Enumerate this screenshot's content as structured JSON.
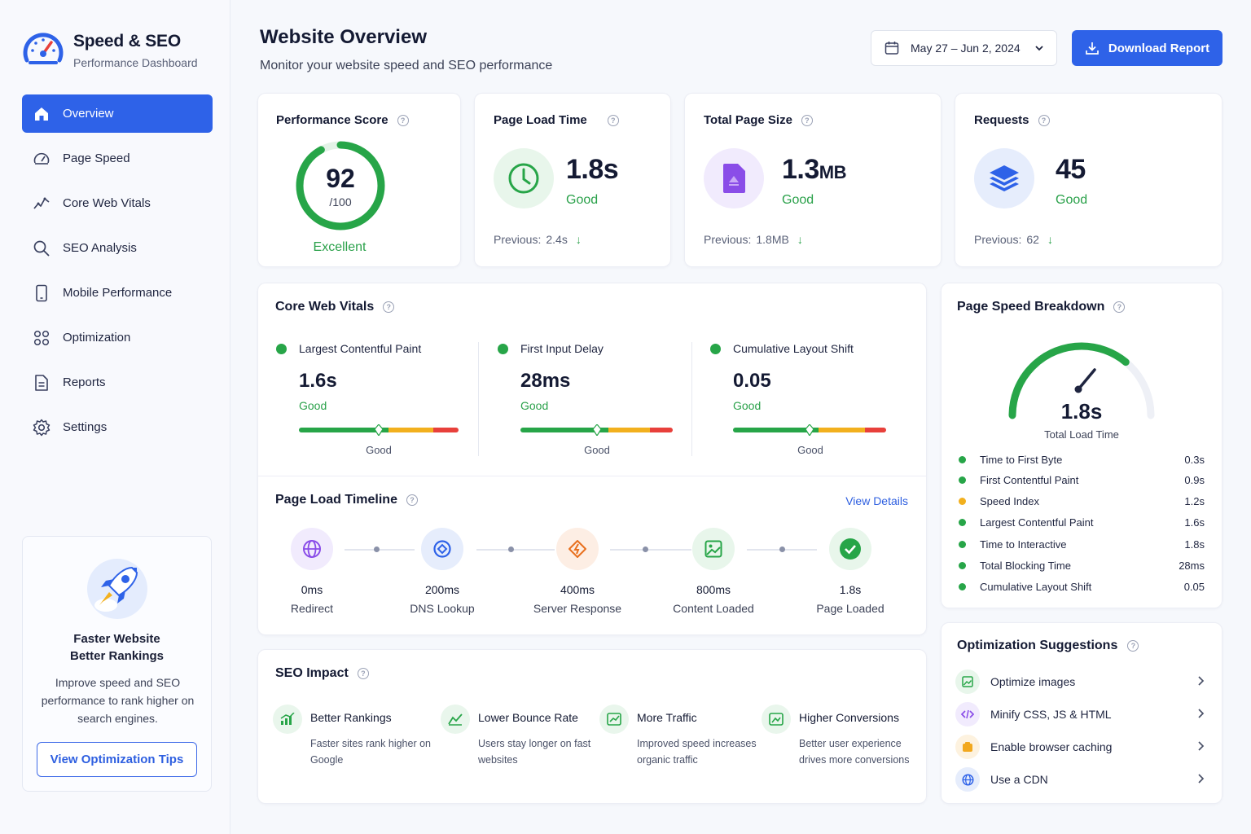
{
  "brand": {
    "title": "Speed & SEO",
    "subtitle": "Performance Dashboard"
  },
  "nav": [
    {
      "label": "Overview",
      "icon": "home-icon",
      "active": true
    },
    {
      "label": "Page Speed",
      "icon": "speedometer-icon"
    },
    {
      "label": "Core Web Vitals",
      "icon": "pulse-icon"
    },
    {
      "label": "SEO Analysis",
      "icon": "search-icon"
    },
    {
      "label": "Mobile Performance",
      "icon": "mobile-icon"
    },
    {
      "label": "Optimization",
      "icon": "optimization-icon"
    },
    {
      "label": "Reports",
      "icon": "document-icon"
    },
    {
      "label": "Settings",
      "icon": "gear-icon"
    }
  ],
  "promo": {
    "title_line1": "Faster Website",
    "title_line2": "Better Rankings",
    "text": "Improve speed and SEO performance to rank higher on search engines.",
    "button": "View Optimization Tips"
  },
  "header": {
    "title": "Website Overview",
    "subtitle": "Monitor your website speed and SEO performance",
    "date_range": "May 27 – Jun 2, 2024",
    "download": "Download Report"
  },
  "colors": {
    "accent": "#2e62e8",
    "good": "#27a548",
    "warn": "#f2b01e",
    "bad": "#e8403b"
  },
  "perf_score": {
    "title": "Performance Score",
    "score": "92",
    "max": "/100",
    "status": "Excellent",
    "fraction": 0.92
  },
  "load_time": {
    "title": "Page Load Time",
    "value": "1.8s",
    "status": "Good",
    "previous_label": "Previous:",
    "previous": "2.4s"
  },
  "page_size": {
    "title": "Total Page Size",
    "value": "1.3",
    "unit": "MB",
    "status": "Good",
    "previous_label": "Previous:",
    "previous": "1.8MB"
  },
  "requests": {
    "title": "Requests",
    "value": "45",
    "status": "Good",
    "previous_label": "Previous:",
    "previous": "62"
  },
  "vitals": {
    "title": "Core Web Vitals",
    "items": [
      {
        "name": "Largest Contentful Paint",
        "value": "1.6s",
        "status": "Good",
        "marker": 0.5,
        "bar_label": "Good"
      },
      {
        "name": "First Input Delay",
        "value": "28ms",
        "status": "Good",
        "marker": 0.5,
        "bar_label": "Good"
      },
      {
        "name": "Cumulative Layout Shift",
        "value": "0.05",
        "status": "Good",
        "marker": 0.5,
        "bar_label": "Good"
      }
    ]
  },
  "timeline": {
    "title": "Page Load Timeline",
    "link": "View Details",
    "steps": [
      {
        "value": "0ms",
        "label": "Redirect",
        "icon": "globe-icon"
      },
      {
        "value": "200ms",
        "label": "DNS Lookup",
        "icon": "dns-icon"
      },
      {
        "value": "400ms",
        "label": "Server Response",
        "icon": "server-response-icon"
      },
      {
        "value": "800ms",
        "label": "Content Loaded",
        "icon": "image-icon"
      },
      {
        "value": "1.8s",
        "label": "Page Loaded",
        "icon": "check-icon"
      }
    ]
  },
  "seo": {
    "title": "SEO Impact",
    "items": [
      {
        "title": "Better Rankings",
        "desc": "Faster sites rank higher on Google",
        "icon": "bar-chart-icon"
      },
      {
        "title": "Lower Bounce Rate",
        "desc": "Users stay longer on fast websites",
        "icon": "trend-icon"
      },
      {
        "title": "More Traffic",
        "desc": "Improved speed increases organic traffic",
        "icon": "traffic-icon"
      },
      {
        "title": "Higher Conversions",
        "desc": "Better user experience drives more conversions",
        "icon": "conversion-icon"
      }
    ]
  },
  "breakdown": {
    "title": "Page Speed Breakdown",
    "total": "1.8s",
    "total_label": "Total Load Time",
    "gauge_fraction": 0.72,
    "rows": [
      {
        "label": "Time to First Byte",
        "value": "0.3s",
        "color": "#27a548"
      },
      {
        "label": "First Contentful Paint",
        "value": "0.9s",
        "color": "#27a548"
      },
      {
        "label": "Speed Index",
        "value": "1.2s",
        "color": "#f2b01e"
      },
      {
        "label": "Largest Contentful Paint",
        "value": "1.6s",
        "color": "#27a548"
      },
      {
        "label": "Time to Interactive",
        "value": "1.8s",
        "color": "#27a548"
      },
      {
        "label": "Total Blocking Time",
        "value": "28ms",
        "color": "#27a548"
      },
      {
        "label": "Cumulative Layout Shift",
        "value": "0.05",
        "color": "#27a548"
      }
    ]
  },
  "suggestions": {
    "title": "Optimization Suggestions",
    "items": [
      {
        "label": "Optimize images",
        "icon": "image-icon"
      },
      {
        "label": "Minify CSS, JS & HTML",
        "icon": "code-icon"
      },
      {
        "label": "Enable browser caching",
        "icon": "cache-icon"
      },
      {
        "label": "Use a CDN",
        "icon": "globe-icon"
      }
    ]
  }
}
